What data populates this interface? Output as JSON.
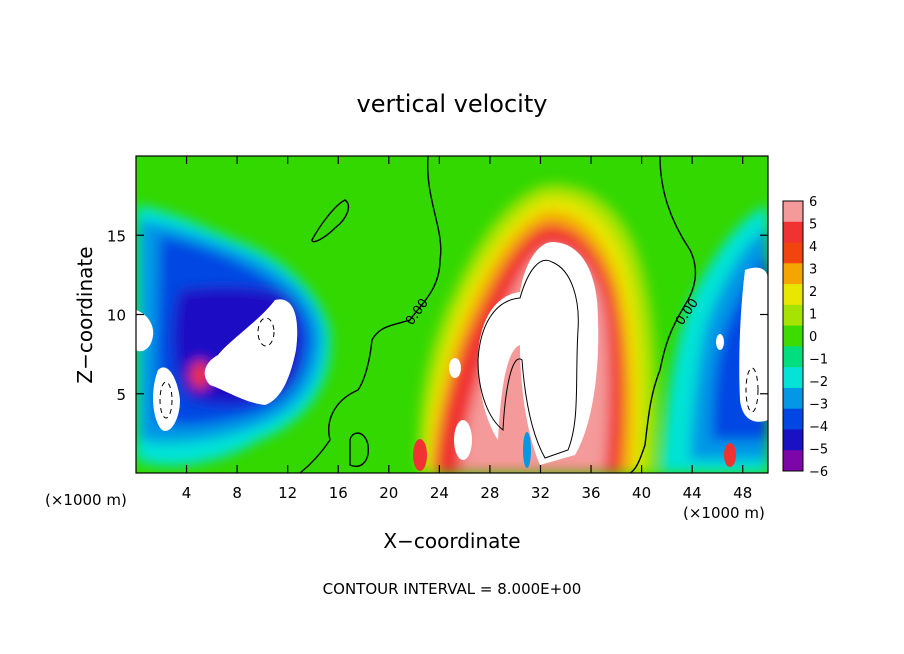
{
  "chart_data": {
    "type": "heatmap",
    "title": "vertical velocity",
    "xlabel": "X−coordinate",
    "ylabel": "Z−coordinate",
    "x_unit_left": "(×1000 m)",
    "x_unit_right": "(×1000 m)",
    "footer": "CONTOUR INTERVAL = 8.000E+00",
    "xlim": [
      0,
      50
    ],
    "ylim": [
      0,
      20
    ],
    "x_ticks": [
      4,
      8,
      12,
      16,
      20,
      24,
      28,
      32,
      36,
      40,
      44,
      48
    ],
    "y_ticks": [
      5,
      10,
      15
    ],
    "colorbar": {
      "labels": [
        "6",
        "5",
        "4",
        "3",
        "2",
        "1",
        "0",
        "−1",
        "−2",
        "−3",
        "−4",
        "−5",
        "−6"
      ],
      "colors": [
        "#f49a9a",
        "#f03232",
        "#f2440e",
        "#f5a500",
        "#e9e600",
        "#a6e300",
        "#3ddb00",
        "#00de7e",
        "#06e3d6",
        "#0397e6",
        "#0247e3",
        "#1a10c4",
        "#7d06a8"
      ],
      "range": [
        -6,
        6
      ]
    },
    "contour_labels": [
      {
        "text": "0.00",
        "x": 22.5,
        "z": 10
      },
      {
        "text": "0.00",
        "x": 43.8,
        "z": 10
      }
    ],
    "features": [
      {
        "kind": "updraft",
        "center_x": 32.5,
        "center_z": 8,
        "peak": ">6"
      },
      {
        "kind": "downdraft",
        "center_x": 9,
        "center_z": 9,
        "peak": "<-6"
      },
      {
        "kind": "downdraft",
        "center_x": 48,
        "center_z": 8,
        "peak": "<-6"
      },
      {
        "kind": "downdraft",
        "center_x": 2.5,
        "center_z": 5,
        "peak": "<-6"
      }
    ]
  }
}
